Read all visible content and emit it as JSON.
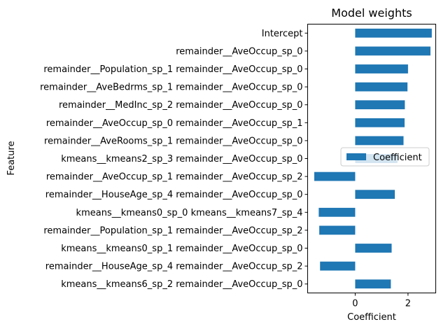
{
  "chart_data": {
    "type": "bar",
    "orientation": "horizontal",
    "title": "Model weights",
    "xlabel": "Coefficient",
    "ylabel": "Feature",
    "xlim": [
      -1.8,
      3.05
    ],
    "x_ticks": [
      0,
      2
    ],
    "grid": false,
    "legend": {
      "placement": "center-right",
      "entries": [
        "Coefficient"
      ]
    },
    "bar_color": "#1f77b4",
    "categories": [
      "Intercept",
      "remainder__AveOccup_sp_0",
      "remainder__Population_sp_1 remainder__AveOccup_sp_0",
      "remainder__AveBedrms_sp_1 remainder__AveOccup_sp_0",
      "remainder__MedInc_sp_2 remainder__AveOccup_sp_0",
      "remainder__AveOccup_sp_0 remainder__AveOccup_sp_1",
      "remainder__AveRooms_sp_1 remainder__AveOccup_sp_0",
      "kmeans__kmeans2_sp_3 remainder__AveOccup_sp_0",
      "remainder__AveOccup_sp_1 remainder__AveOccup_sp_2",
      "remainder__HouseAge_sp_4 remainder__AveOccup_sp_0",
      "kmeans__kmeans0_sp_0 kmeans__kmeans7_sp_4",
      "remainder__Population_sp_1 remainder__AveOccup_sp_2",
      "kmeans__kmeans0_sp_1 remainder__AveOccup_sp_0",
      "remainder__HouseAge_sp_4 remainder__AveOccup_sp_2",
      "kmeans__kmeans6_sp_2 remainder__AveOccup_sp_0"
    ],
    "series": [
      {
        "name": "Coefficient",
        "values": [
          2.9,
          2.85,
          2.0,
          1.98,
          1.88,
          1.87,
          1.83,
          1.6,
          -1.55,
          1.5,
          -1.38,
          -1.36,
          1.38,
          -1.33,
          1.35
        ]
      }
    ]
  }
}
